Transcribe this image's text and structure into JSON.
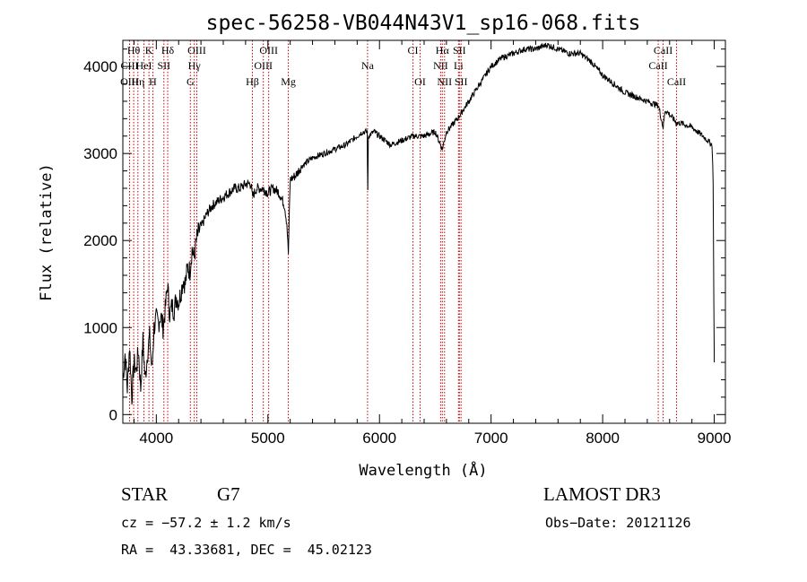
{
  "chart_data": {
    "type": "line",
    "title": "spec-56258-VB044N43V1_sp16-068.fits",
    "xlabel": "Wavelength (Å)",
    "ylabel": "Flux (relative)",
    "xlim": [
      3700,
      9100
    ],
    "ylim": [
      -100,
      4300
    ],
    "grid": false,
    "xticks": [
      4000,
      5000,
      6000,
      7000,
      8000,
      9000
    ],
    "yticks": [
      0,
      1000,
      2000,
      3000,
      4000
    ],
    "series": [
      {
        "values_note": "",
        "x": [
          3700,
          3720,
          3740,
          3760,
          3780,
          3800,
          3820,
          3840,
          3860,
          3880,
          3900,
          3920,
          3940,
          3960,
          3980,
          4000,
          4020,
          4040,
          4060,
          4080,
          4100,
          4120,
          4140,
          4160,
          4180,
          4200,
          4220,
          4240,
          4260,
          4280,
          4300,
          4320,
          4340,
          4360,
          4380,
          4400,
          4450,
          4500,
          4550,
          4600,
          4650,
          4700,
          4750,
          4800,
          4850,
          4860,
          4900,
          4950,
          5000,
          5050,
          5100,
          5150,
          5170,
          5183,
          5200,
          5250,
          5300,
          5400,
          5500,
          5600,
          5700,
          5800,
          5850,
          5890,
          5895,
          5900,
          5950,
          6000,
          6100,
          6200,
          6300,
          6400,
          6500,
          6563,
          6600,
          6700,
          6800,
          6900,
          7000,
          7100,
          7200,
          7300,
          7400,
          7500,
          7600,
          7700,
          7800,
          7900,
          8000,
          8100,
          8200,
          8300,
          8400,
          8500,
          8542,
          8560,
          8600,
          8662,
          8700,
          8800,
          8900,
          8980,
          8990,
          9000
        ],
        "y": [
          400,
          700,
          300,
          800,
          200,
          600,
          500,
          750,
          300,
          850,
          400,
          700,
          900,
          500,
          1000,
          1100,
          1050,
          1150,
          1000,
          1200,
          1500,
          1150,
          1250,
          1200,
          1350,
          1300,
          1400,
          1550,
          1500,
          1700,
          1650,
          1900,
          1800,
          2000,
          2100,
          2150,
          2300,
          2400,
          2450,
          2500,
          2550,
          2600,
          2600,
          2650,
          2650,
          2500,
          2600,
          2600,
          2550,
          2600,
          2550,
          2400,
          2200,
          1850,
          2700,
          2750,
          2850,
          2950,
          3000,
          3050,
          3100,
          3200,
          3250,
          3250,
          2550,
          3200,
          3250,
          3200,
          3100,
          3150,
          3200,
          3200,
          3250,
          3050,
          3250,
          3400,
          3600,
          3800,
          4000,
          4100,
          4150,
          4200,
          4200,
          4250,
          4200,
          4150,
          4150,
          4050,
          3900,
          3800,
          3700,
          3650,
          3600,
          3550,
          3300,
          3500,
          3450,
          3350,
          3350,
          3300,
          3200,
          3100,
          2700,
          600
        ]
      }
    ],
    "lines": [
      {
        "label": "Hθ",
        "x": 3797,
        "row": 0
      },
      {
        "label": "CIII",
        "x": 3760,
        "row": 1
      },
      {
        "label": "OIII",
        "x": 3760,
        "row": 2
      },
      {
        "label": "K",
        "x": 3934,
        "row": 0
      },
      {
        "label": "HeI",
        "x": 3889,
        "row": 1
      },
      {
        "label": "Hη",
        "x": 3835,
        "row": 2
      },
      {
        "label": "Hδ",
        "x": 4102,
        "row": 0
      },
      {
        "label": "SII",
        "x": 4068,
        "row": 1
      },
      {
        "label": "H",
        "x": 3969,
        "row": 2
      },
      {
        "label": "OIII",
        "x": 4363,
        "row": 0
      },
      {
        "label": "Hγ",
        "x": 4340,
        "row": 1
      },
      {
        "label": "G",
        "x": 4305,
        "row": 2
      },
      {
        "label": "OIII",
        "x": 5007,
        "row": 0
      },
      {
        "label": "OIII",
        "x": 4959,
        "row": 1
      },
      {
        "label": "Hβ",
        "x": 4861,
        "row": 2
      },
      {
        "label": "Mg",
        "x": 5183,
        "row": 2
      },
      {
        "label": "Na",
        "x": 5893,
        "row": 1
      },
      {
        "label": "CI",
        "x": 6300,
        "row": 0
      },
      {
        "label": "OI",
        "x": 6364,
        "row": 2
      },
      {
        "label": "Hα",
        "x": 6563,
        "row": 0
      },
      {
        "label": "NII",
        "x": 6548,
        "row": 1
      },
      {
        "label": "NII",
        "x": 6583,
        "row": 2
      },
      {
        "label": "SII",
        "x": 6716,
        "row": 0
      },
      {
        "label": "Li",
        "x": 6708,
        "row": 1
      },
      {
        "label": "SII",
        "x": 6731,
        "row": 2
      },
      {
        "label": "CaII",
        "x": 8542,
        "row": 0
      },
      {
        "label": "CaII",
        "x": 8498,
        "row": 1
      },
      {
        "label": "CaII",
        "x": 8662,
        "row": 2
      }
    ]
  },
  "info": {
    "object_class": "STAR",
    "subclass": "G7",
    "survey": "LAMOST DR3",
    "velocity": "cz = −57.2 ± 1.2 km/s",
    "obs_date": "Obs−Date: 20121126",
    "coords": "RA =  43.33681, DEC =  45.02123"
  },
  "colors": {
    "spectrum": "#000000",
    "line_markers": "#cc0000"
  }
}
